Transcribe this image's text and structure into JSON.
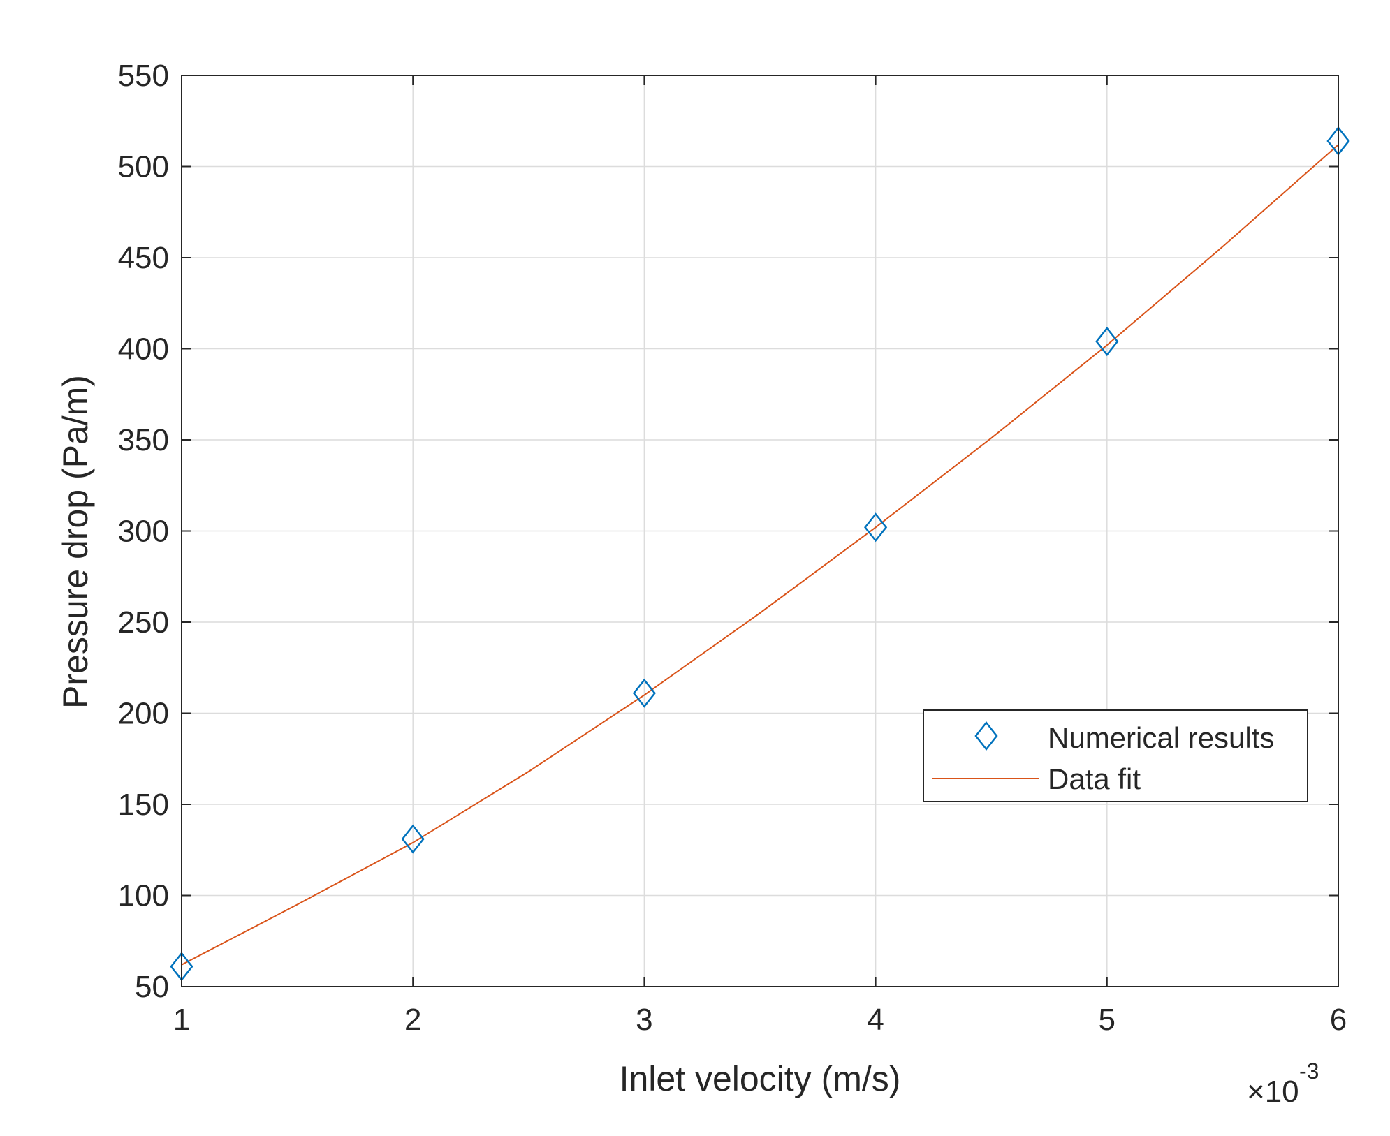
{
  "chart_data": {
    "type": "scatter",
    "xlabel": "Inlet velocity (m/s)",
    "ylabel": "Pressure drop (Pa/m)",
    "x_exponent_base": "×10",
    "x_exponent_power": "-3",
    "xlim": [
      1,
      6
    ],
    "ylim": [
      50,
      550
    ],
    "xticks": [
      1,
      2,
      3,
      4,
      5,
      6
    ],
    "yticks": [
      50,
      100,
      150,
      200,
      250,
      300,
      350,
      400,
      450,
      500,
      550
    ],
    "grid": true,
    "legend_position": "lower-right",
    "series": [
      {
        "name": "Numerical results",
        "kind": "markers",
        "marker": "diamond-icon",
        "color": "#0072bd",
        "x": [
          1,
          2,
          3,
          4,
          5,
          6
        ],
        "y": [
          61,
          131,
          211,
          302,
          404,
          514
        ]
      },
      {
        "name": "Data fit",
        "kind": "line",
        "color": "#d95319",
        "x": [
          1,
          1.5,
          2,
          2.5,
          3,
          3.5,
          4,
          4.5,
          5,
          5.5,
          6
        ],
        "y": [
          62,
          95,
          129,
          168,
          210,
          255,
          302,
          351,
          402,
          456,
          512
        ]
      }
    ]
  }
}
